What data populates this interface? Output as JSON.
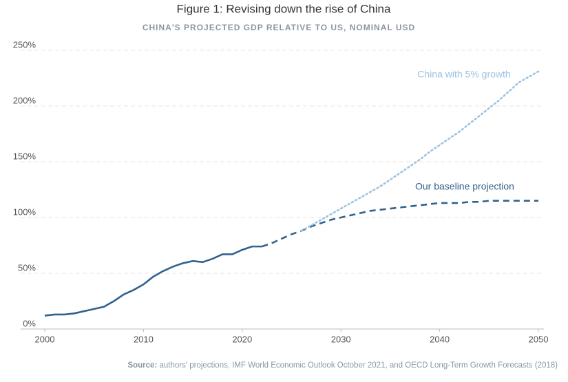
{
  "chart_data": {
    "type": "line",
    "title": "Figure 1: Revising down the rise of China",
    "subtitle": "CHINA'S PROJECTED GDP RELATIVE TO US, NOMINAL USD",
    "source_label": "Source:",
    "source": "authors' projections, IMF World Economic Outlook October 2021, and OECD Long-Term Growth Forecasts (2018)",
    "xlim": [
      2000,
      2050
    ],
    "xticks": [
      2000,
      2010,
      2020,
      2030,
      2040,
      2050
    ],
    "ylim": [
      0,
      250
    ],
    "yticks": [
      {
        "value": 0,
        "label": "0%"
      },
      {
        "value": 50,
        "label": "50%"
      },
      {
        "value": 100,
        "label": "100%"
      },
      {
        "value": 150,
        "label": "150%"
      },
      {
        "value": 200,
        "label": "200%"
      },
      {
        "value": 250,
        "label": "250%"
      }
    ],
    "grid": true,
    "series": [
      {
        "color": "#30628e",
        "style": "solid",
        "x": [
          2000,
          2001,
          2002,
          2003,
          2004,
          2005,
          2006,
          2007,
          2008,
          2009,
          2010,
          2011,
          2012,
          2013,
          2014,
          2015,
          2016,
          2017,
          2018,
          2019,
          2020,
          2021,
          2022
        ],
        "values": [
          12,
          13,
          13,
          14,
          16,
          18,
          20,
          25,
          31,
          35,
          40,
          47,
          52,
          56,
          59,
          61,
          60,
          63,
          67,
          67,
          71,
          74,
          74
        ]
      },
      {
        "name": "Our baseline projection",
        "color": "#30628e",
        "style": "dashed",
        "x": [
          2022,
          2023,
          2024,
          2025,
          2026,
          2027,
          2028,
          2029,
          2030,
          2031,
          2032,
          2033,
          2034,
          2035,
          2036,
          2037,
          2038,
          2039,
          2040,
          2041,
          2042,
          2043,
          2044,
          2045,
          2046,
          2047,
          2048,
          2049,
          2050
        ],
        "values": [
          74,
          77,
          81,
          85,
          88,
          92,
          95,
          98,
          100,
          102,
          104,
          106,
          107,
          108,
          109,
          110,
          111,
          112,
          113,
          113,
          113,
          114,
          114,
          115,
          115,
          115,
          115,
          115,
          115
        ]
      },
      {
        "name": "China with 5% growth",
        "color": "#9cc2e0",
        "style": "dotted",
        "x": [
          2026,
          2027,
          2028,
          2029,
          2030,
          2031,
          2032,
          2033,
          2034,
          2035,
          2036,
          2037,
          2038,
          2039,
          2040,
          2041,
          2042,
          2043,
          2044,
          2045,
          2046,
          2047,
          2048,
          2049,
          2050
        ],
        "values": [
          88,
          93,
          98,
          103,
          108,
          113,
          118,
          123,
          128,
          134,
          140,
          146,
          152,
          159,
          165,
          171,
          177,
          184,
          191,
          198,
          205,
          213,
          221,
          226,
          231
        ]
      }
    ]
  }
}
